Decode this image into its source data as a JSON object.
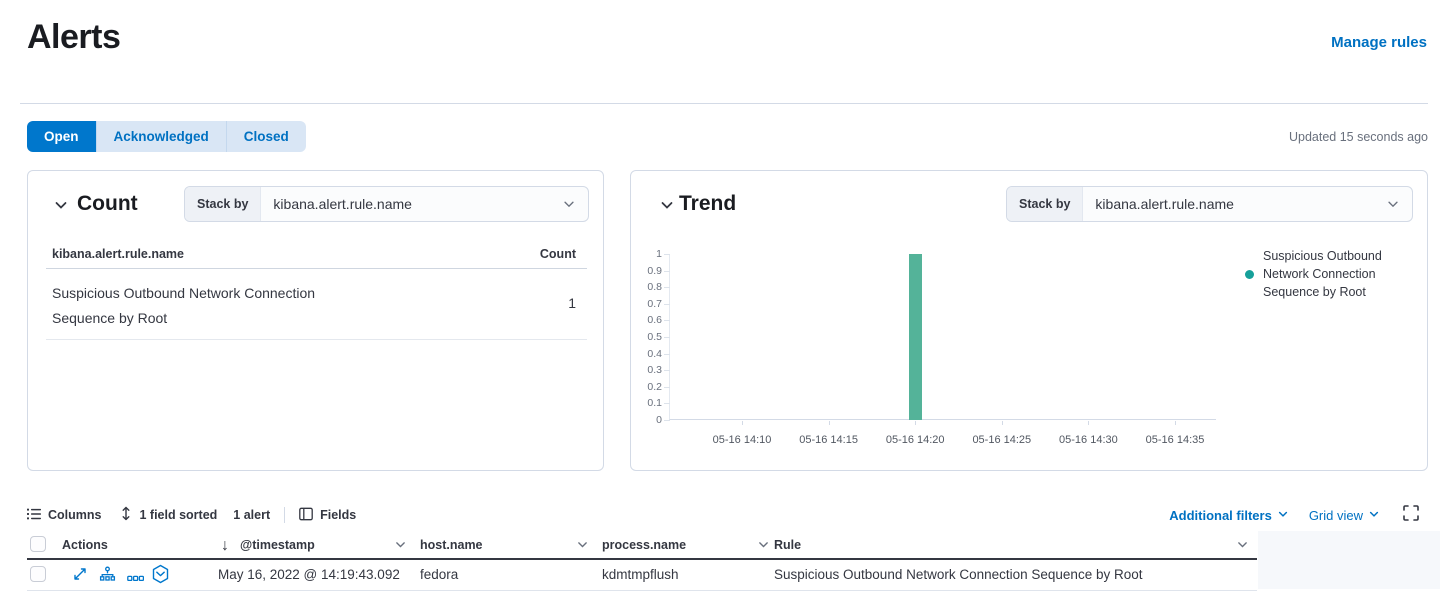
{
  "page": {
    "title": "Alerts",
    "manage_rules_label": "Manage rules",
    "updated_text": "Updated 15 seconds ago"
  },
  "status_filter": {
    "options": [
      {
        "label": "Open",
        "selected": true
      },
      {
        "label": "Acknowledged",
        "selected": false
      },
      {
        "label": "Closed",
        "selected": false
      }
    ]
  },
  "count_panel": {
    "title": "Count",
    "stack_by_label": "Stack by",
    "stack_by_value": "kibana.alert.rule.name",
    "table": {
      "field_header": "kibana.alert.rule.name",
      "count_header": "Count",
      "rows": [
        {
          "field": "Suspicious Outbound Network Connection Sequence by Root",
          "count": "1"
        }
      ]
    }
  },
  "trend_panel": {
    "title": "Trend",
    "stack_by_label": "Stack by",
    "stack_by_value": "kibana.alert.rule.name",
    "legend": {
      "label": "Suspicious Outbound Network Connection Sequence by Root",
      "dot_color": "#16A09A"
    }
  },
  "chart_data": {
    "type": "bar",
    "title": "Trend",
    "x_categories": [
      "05-16 14:10",
      "05-16 14:15",
      "05-16 14:20",
      "05-16 14:25",
      "05-16 14:30",
      "05-16 14:35"
    ],
    "series": [
      {
        "name": "Suspicious Outbound Network Connection Sequence by Root",
        "color": "#54B399",
        "data": [
          {
            "x": "05-16 14:20",
            "y": 1
          }
        ]
      }
    ],
    "ylim": [
      0,
      1
    ],
    "ytick_labels": [
      "1",
      "0.9",
      "0.8",
      "0.7",
      "0.6",
      "0.5",
      "0.4",
      "0.3",
      "0.2",
      "0.1",
      "0"
    ],
    "xlabel": "",
    "ylabel": "",
    "grid": false,
    "legend_position": "right"
  },
  "alerts_toolbar": {
    "columns_label": "Columns",
    "sorted_label": "1 field sorted",
    "alert_count_label": "1 alert",
    "fields_label": "Fields",
    "additional_filters_label": "Additional filters",
    "grid_view_label": "Grid view"
  },
  "alerts_table": {
    "columns": [
      {
        "label": "Actions"
      },
      {
        "label": "@timestamp",
        "sorted": "desc"
      },
      {
        "label": "host.name"
      },
      {
        "label": "process.name"
      },
      {
        "label": "Rule"
      }
    ],
    "rows": [
      {
        "timestamp": "May 16, 2022 @ 14:19:43.092",
        "host_name": "fedora",
        "process_name": "kdmtmpflush",
        "rule": "Suspicious Outbound Network Connection Sequence by Root"
      }
    ]
  },
  "icons": {
    "sort_desc_arrow": "↓"
  },
  "colors": {
    "primary": "#0077CC",
    "link": "#0071C2",
    "bar": "#54B399",
    "text": "#343741",
    "subdued": "#69707D",
    "border": "#D3DAE6"
  }
}
